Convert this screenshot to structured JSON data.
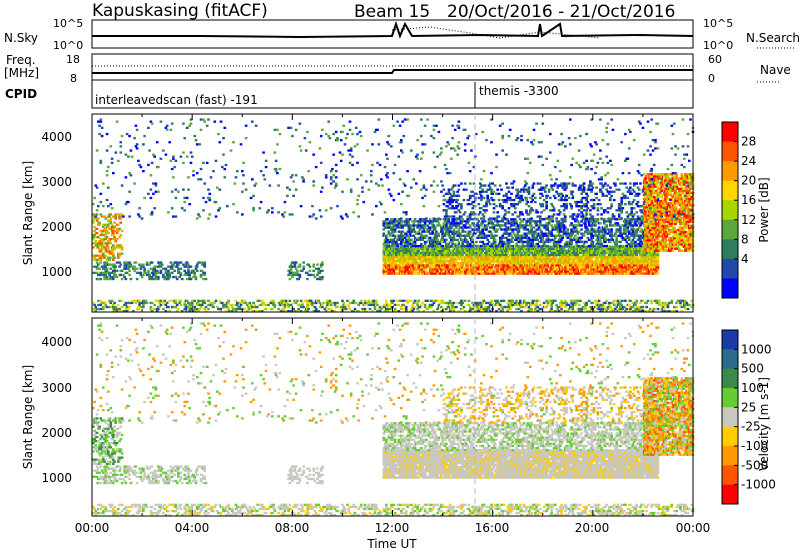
{
  "header": {
    "station": "Kapuskasing (fitACF)",
    "beam": "Beam 15",
    "date_range": "20/Oct/2016 - 21/Oct/2016"
  },
  "noise_panel": {
    "left_label": "N.Sky",
    "right_label": "N.Search",
    "left_ticks": [
      "10^5",
      "10^0"
    ],
    "right_ticks": [
      "10^5",
      "10^0"
    ]
  },
  "freq_panel": {
    "left_label_1": "Freq.",
    "left_label_2": "[MHz]",
    "right_label": "Nave",
    "left_ticks": [
      "18",
      "8"
    ],
    "right_ticks": [
      "60",
      "0"
    ]
  },
  "cpid_panel": {
    "label": "CPID",
    "programs": [
      {
        "name": "interleavedscan (fast) -191",
        "start_hour": 0
      },
      {
        "name": "themis -3300",
        "start_hour": 15.33
      }
    ]
  },
  "chart_data": [
    {
      "type": "heatmap",
      "name": "power",
      "ylabel": "Slant Range [km]",
      "xlabel": "",
      "x_range_hours": [
        0,
        24
      ],
      "y_range_km": [
        180,
        4500
      ],
      "yticks": [
        "1000",
        "2000",
        "3000",
        "4000"
      ],
      "colorbar": {
        "label": "Power [dB]",
        "ticks": [
          "28",
          "24",
          "20",
          "16",
          "12",
          "8",
          "4"
        ],
        "colors": [
          "#ff0000",
          "#ff5500",
          "#ff9900",
          "#ffd400",
          "#a8d400",
          "#5aa83c",
          "#2f7d5a",
          "#1f4aa8",
          "#0000ff"
        ]
      }
    },
    {
      "type": "heatmap",
      "name": "velocity",
      "ylabel": "Slant Range [km]",
      "xlabel": "Time UT",
      "x_range_hours": [
        0,
        24
      ],
      "y_range_km": [
        180,
        4500
      ],
      "yticks": [
        "1000",
        "2000",
        "3000",
        "4000"
      ],
      "xticks": [
        "00:00",
        "04:00",
        "08:00",
        "12:00",
        "16:00",
        "20:00",
        "00:00"
      ],
      "colorbar": {
        "label": "Velocity [m s-1]",
        "ticks": [
          "1000",
          "500",
          "100",
          "25",
          "-25",
          "-100",
          "-500",
          "-1000"
        ],
        "colors": [
          "#1a3aa8",
          "#2a6d8a",
          "#3a8a4a",
          "#66cc33",
          "#c8c8c0",
          "#ffcc00",
          "#ff9900",
          "#ff5500",
          "#ff0000"
        ]
      }
    }
  ]
}
